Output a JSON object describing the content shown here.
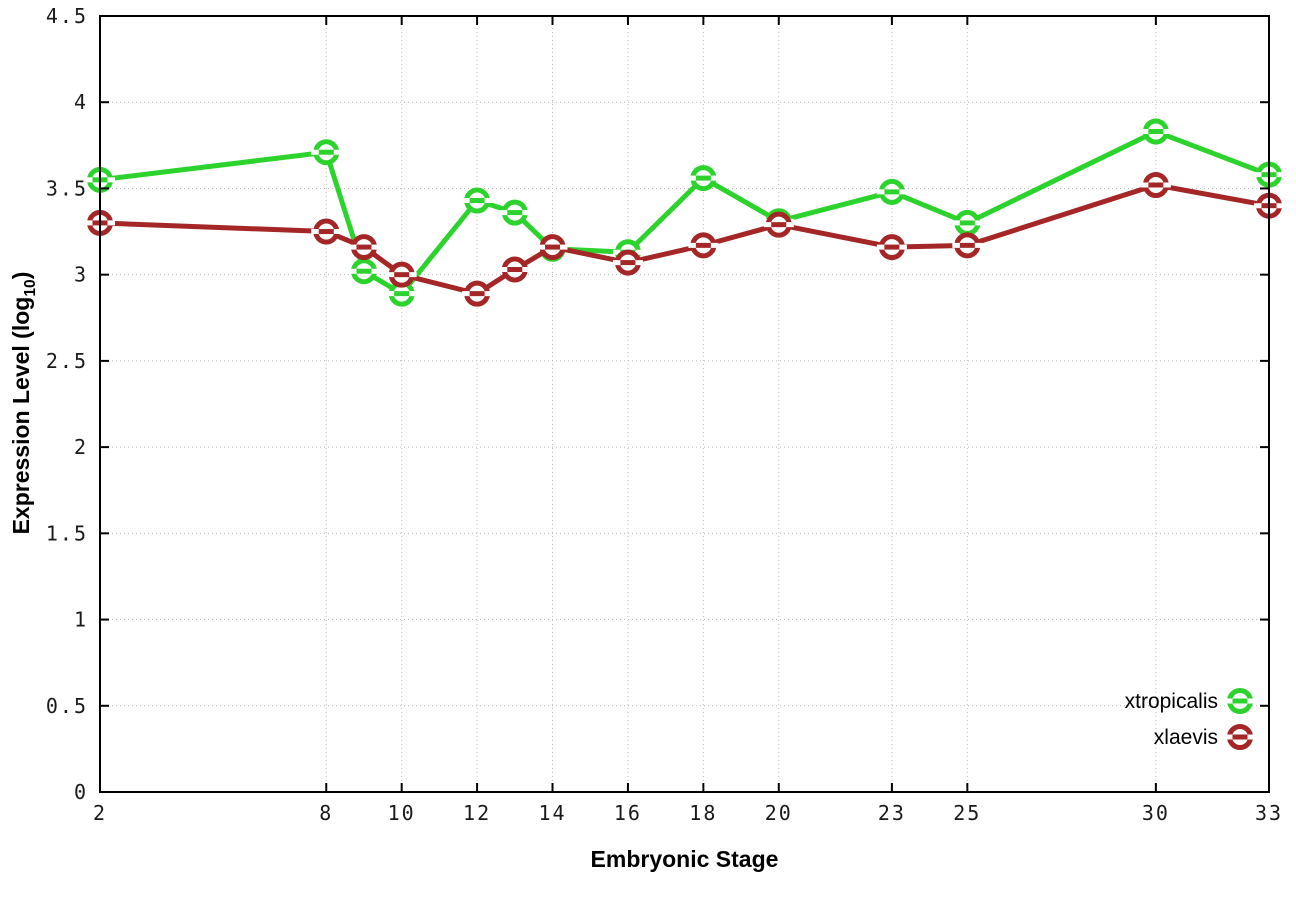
{
  "chart_data": {
    "type": "line",
    "title": "",
    "xlabel": "Embryonic Stage",
    "ylabel": "Expression Level (log10)",
    "ylabel_parts": {
      "prefix": "Expression Level (log",
      "sub": "10",
      "suffix": ")"
    },
    "x": [
      2,
      8,
      9,
      10,
      12,
      13,
      14,
      16,
      18,
      20,
      23,
      25,
      30,
      33
    ],
    "series": [
      {
        "name": "xtropicalis",
        "color": "#2dd32d",
        "values": [
          3.55,
          3.71,
          3.02,
          2.89,
          3.43,
          3.36,
          3.15,
          3.13,
          3.56,
          3.31,
          3.48,
          3.3,
          3.83,
          3.58
        ]
      },
      {
        "name": "xlaevis",
        "color": "#a42626",
        "values": [
          3.3,
          3.25,
          3.16,
          3.0,
          2.89,
          3.03,
          3.16,
          3.07,
          3.17,
          3.29,
          3.16,
          3.17,
          3.52,
          3.4
        ]
      }
    ],
    "xlim": [
      2,
      33
    ],
    "ylim": [
      0,
      4.5
    ],
    "xticks": [
      2,
      8,
      10,
      12,
      14,
      16,
      18,
      20,
      23,
      25,
      30,
      33
    ],
    "xtick_labels": [
      "2",
      "8",
      "10",
      "12",
      "14",
      "16",
      "18",
      "20",
      "23",
      "25",
      "30",
      "33"
    ],
    "yticks": [
      0,
      0.5,
      1,
      1.5,
      2,
      2.5,
      3,
      3.5,
      4,
      4.5
    ],
    "ytick_labels": [
      "0",
      "0.5",
      "1",
      "1.5",
      "2",
      "2.5",
      "3",
      "3.5",
      "4",
      "4.5"
    ],
    "grid": true,
    "grid_color": "#bbbbbb",
    "border_color": "#000000",
    "background_color": "#ffffff",
    "legend_position": "bottom-right",
    "legend": [
      "xtropicalis",
      "xlaevis"
    ]
  }
}
